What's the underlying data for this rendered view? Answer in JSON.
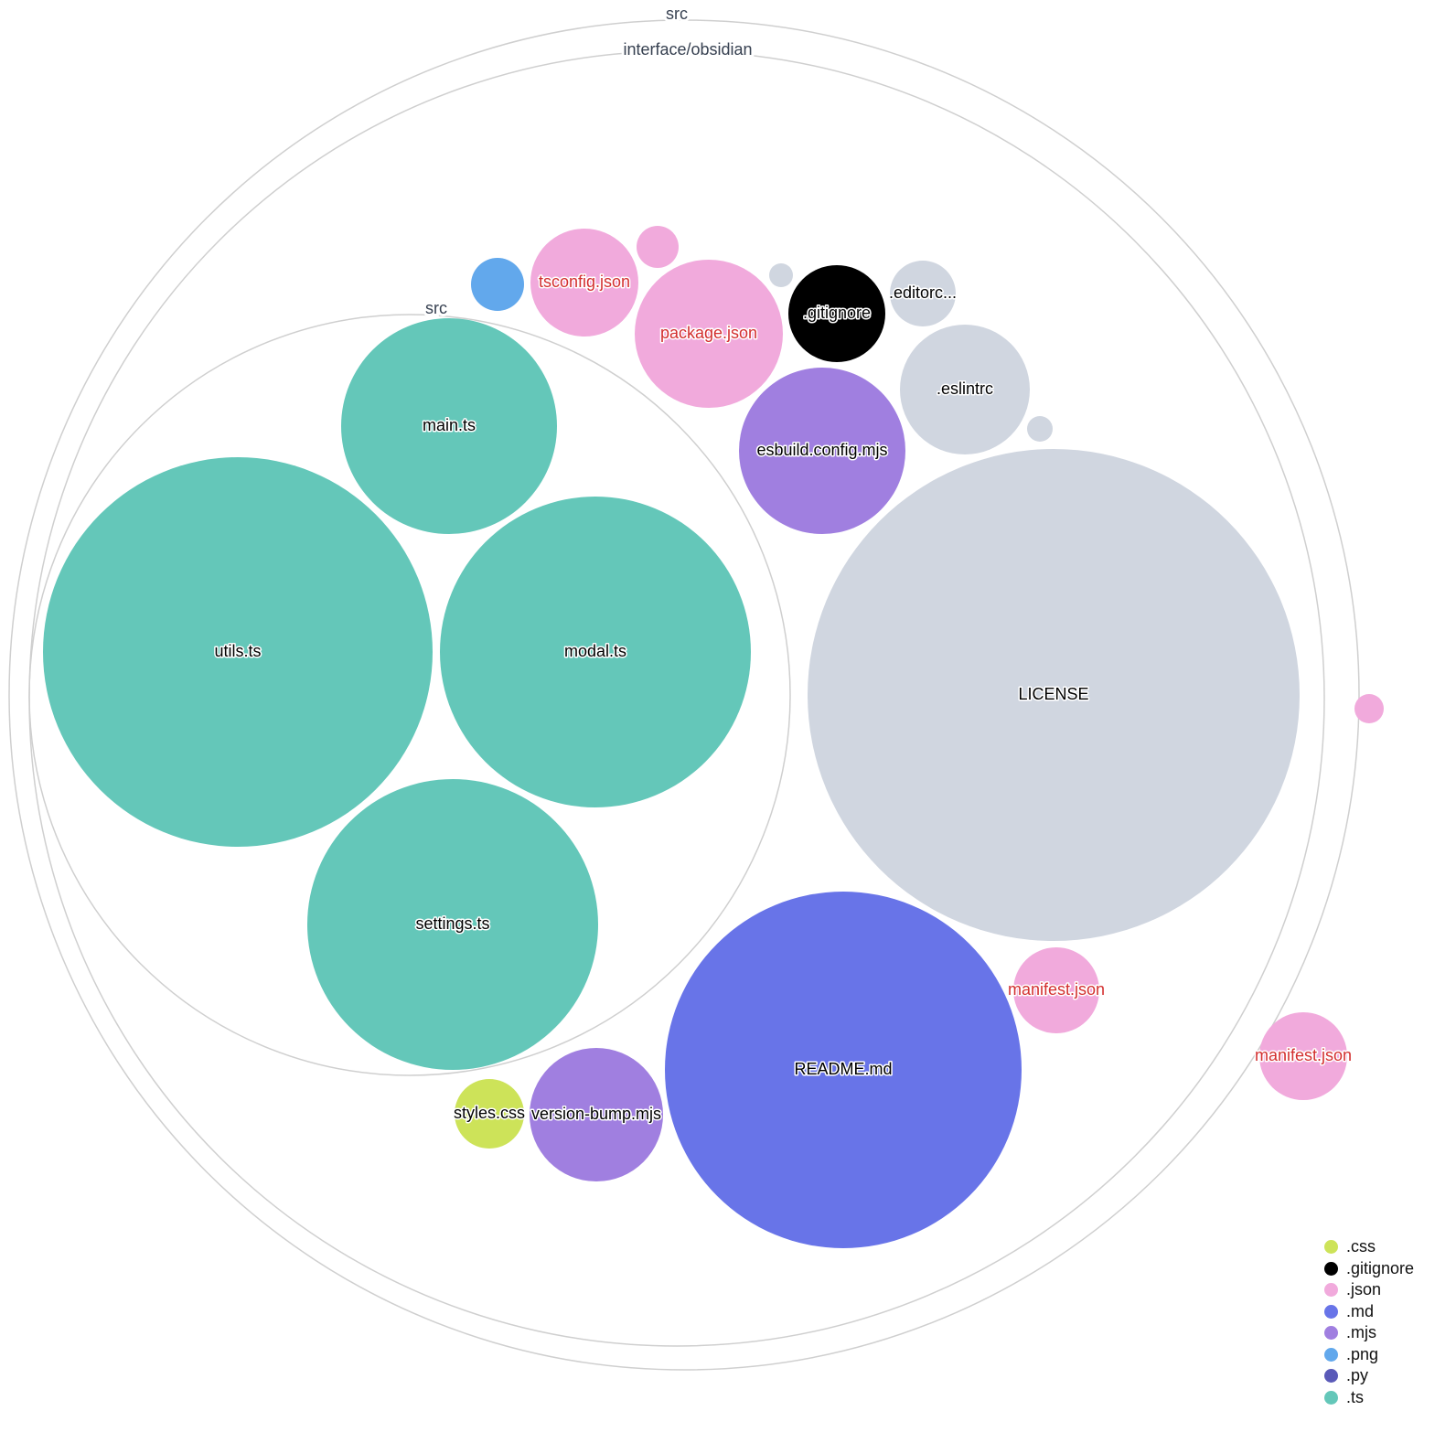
{
  "colors": {
    ".css": "#cde359",
    ".gitignore": "#000000",
    ".json": "#f1aadc",
    ".md": "#6874e8",
    ".mjs": "#a07fe0",
    ".png": "#62a8ec",
    ".py": "#5a5ab8",
    ".ts": "#64c7b9",
    "other": "#d0d6e0",
    "changed_label": "#d32f2f"
  },
  "folders": [
    {
      "label": "src"
    },
    {
      "label": "interface/obsidian"
    },
    {
      "label": "src"
    }
  ],
  "files": [
    {
      "label": "utils.ts",
      "ext": ".ts"
    },
    {
      "label": "main.ts",
      "ext": ".ts"
    },
    {
      "label": "modal.ts",
      "ext": ".ts"
    },
    {
      "label": "settings.ts",
      "ext": ".ts"
    },
    {
      "label": "LICENSE",
      "ext": "other"
    },
    {
      "label": "README.md",
      "ext": ".md"
    },
    {
      "label": "esbuild.config.mjs",
      "ext": ".mjs"
    },
    {
      "label": ".eslintrc",
      "ext": "other"
    },
    {
      "label": ".gitignore",
      "ext": ".gitignore"
    },
    {
      "label": ".editorc...",
      "ext": "other"
    },
    {
      "label": "package.json",
      "ext": ".json",
      "changed": true
    },
    {
      "label": "tsconfig.json",
      "ext": ".json",
      "changed": true
    },
    {
      "label": "",
      "ext": ".png"
    },
    {
      "label": "",
      "ext": ".json"
    },
    {
      "label": "",
      "ext": "other"
    },
    {
      "label": "",
      "ext": "other"
    },
    {
      "label": "manifest.json",
      "ext": ".json",
      "changed": true
    },
    {
      "label": "styles.css",
      "ext": ".css"
    },
    {
      "label": "version-bump.mjs",
      "ext": ".mjs"
    },
    {
      "label": "",
      "ext": ".json"
    },
    {
      "label": "manifest.json",
      "ext": ".json",
      "changed": true
    }
  ],
  "legend": [
    {
      "label": ".css",
      "color": "#cde359"
    },
    {
      "label": ".gitignore",
      "color": "#000000"
    },
    {
      "label": ".json",
      "color": "#f1aadc"
    },
    {
      "label": ".md",
      "color": "#6874e8"
    },
    {
      "label": ".mjs",
      "color": "#a07fe0"
    },
    {
      "label": ".png",
      "color": "#62a8ec"
    },
    {
      "label": ".py",
      "color": "#5a5ab8"
    },
    {
      "label": ".ts",
      "color": "#64c7b9"
    }
  ]
}
